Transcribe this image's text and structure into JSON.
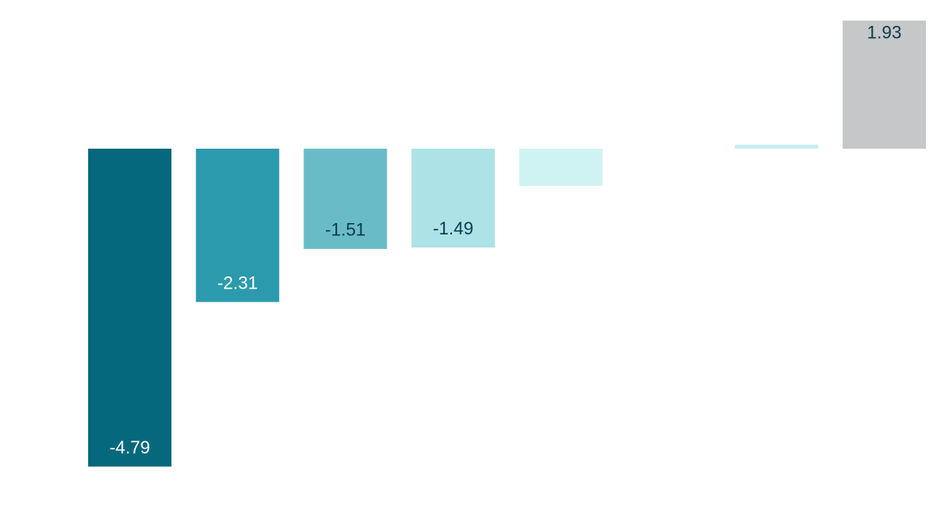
{
  "chart_data": {
    "type": "bar",
    "values": [
      -4.79,
      -2.31,
      -1.51,
      -1.49,
      -0.56,
      null,
      0.06,
      1.93
    ],
    "value_labels": [
      "-4.79",
      "-2.31",
      "-1.51",
      "-1.49",
      null,
      null,
      null,
      "1.93"
    ],
    "colors": [
      "#05687c",
      "#2b9aad",
      "#69bcc7",
      "#ade2e6",
      "#cff3f2",
      null,
      "#c8eef0",
      "#c6c7c8"
    ],
    "label_colors": [
      "#ffffff",
      "#ffffff",
      "#0b3a50",
      "#0b3a50",
      null,
      null,
      null,
      "#0b3a50"
    ],
    "ylim": [
      -5.7,
      2.24
    ]
  }
}
